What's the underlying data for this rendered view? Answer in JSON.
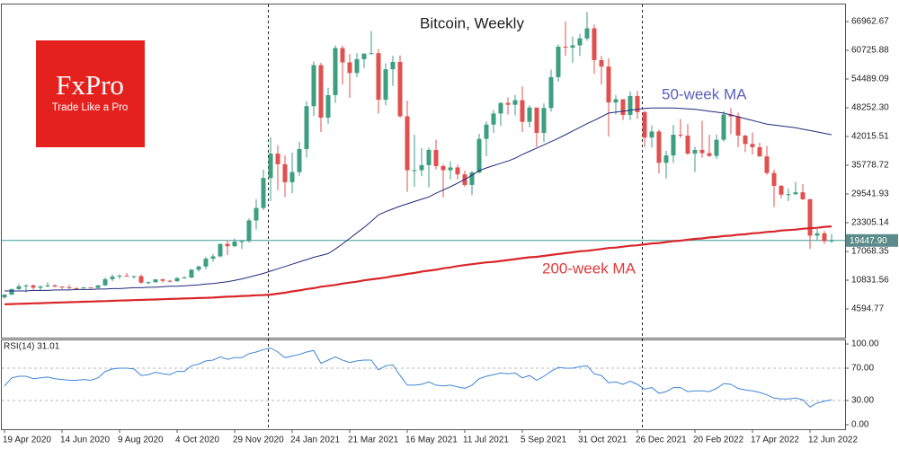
{
  "logo": {
    "name": "FxPro",
    "tagline": "Trade Like a Pro"
  },
  "chart_data": {
    "type": "candlestick",
    "title": "Bitcoin, Weekly",
    "categories": [
      "19 Apr 2020",
      null,
      null,
      null,
      null,
      null,
      null,
      null,
      "14 Jun 2020",
      null,
      null,
      null,
      null,
      null,
      null,
      null,
      "9 Aug 2020",
      null,
      null,
      null,
      null,
      null,
      null,
      null,
      "4 Oct 2020",
      null,
      null,
      null,
      null,
      null,
      null,
      null,
      "29 Nov 2020",
      null,
      null,
      null,
      null,
      null,
      null,
      null,
      "24 Jan 2021",
      null,
      null,
      null,
      null,
      null,
      null,
      null,
      "21 Mar 2021",
      null,
      null,
      null,
      null,
      null,
      null,
      null,
      "16 May 2021",
      null,
      null,
      null,
      null,
      null,
      null,
      null,
      "11 Jul 2021",
      null,
      null,
      null,
      null,
      null,
      null,
      null,
      "5 Sep 2021",
      null,
      null,
      null,
      null,
      null,
      null,
      null,
      "31 Oct 2021",
      null,
      null,
      null,
      null,
      null,
      null,
      null,
      "26 Dec 2021",
      null,
      null,
      null,
      null,
      null,
      null,
      null,
      "20 Feb 2022",
      null,
      null,
      null,
      null,
      null,
      null,
      null,
      "17 Apr 2022",
      null,
      null,
      null,
      null,
      null,
      null,
      null,
      "12 Jun 2022",
      null,
      null,
      null
    ],
    "open": [
      7100,
      7700,
      8900,
      9500,
      9700,
      9200,
      9500,
      9700,
      9450,
      9300,
      9100,
      9050,
      9250,
      9150,
      9700,
      11050,
      11600,
      11800,
      11700,
      11700,
      10300,
      10400,
      11000,
      10700,
      10600,
      11300,
      11400,
      13100,
      13800,
      15500,
      16000,
      18700,
      18200,
      19200,
      19300,
      23800,
      26500,
      33000,
      38300,
      36000,
      32100,
      34300,
      39300,
      48600,
      57500,
      46100,
      51000,
      61200,
      58100,
      55800,
      58800,
      60000,
      60100,
      50000,
      56600,
      58200,
      46400,
      34700,
      34700,
      35800,
      39100,
      35600,
      34700,
      35300,
      33800,
      31500,
      34200,
      41500,
      44600,
      47000,
      49300,
      48900,
      49900,
      45200,
      48300,
      42800,
      48200,
      54900,
      61500,
      61300,
      61800,
      63300,
      65500,
      58600,
      57200,
      49400,
      50100,
      46700,
      50800,
      47300,
      41800,
      43100,
      36300,
      37900,
      42400,
      42200,
      38300,
      39100,
      38400,
      37800,
      41300,
      46800,
      46400,
      42200,
      40400,
      39700,
      37700,
      34100,
      31300,
      29400,
      29500,
      29900,
      28400,
      20500,
      21000,
      19300
    ],
    "high": [
      7800,
      9000,
      10000,
      9900,
      9900,
      9600,
      10400,
      9900,
      9500,
      9800,
      9300,
      9400,
      9300,
      9800,
      11400,
      12100,
      12100,
      12400,
      11800,
      12100,
      10600,
      11100,
      11200,
      10900,
      11500,
      11700,
      13300,
      14000,
      15900,
      16500,
      18800,
      19500,
      19900,
      19400,
      24200,
      28400,
      34800,
      41900,
      40100,
      37900,
      38500,
      40900,
      49700,
      58300,
      58000,
      52600,
      61800,
      61700,
      59900,
      60100,
      60100,
      64900,
      61000,
      57900,
      59500,
      59600,
      49800,
      42400,
      39500,
      39600,
      41300,
      36000,
      36600,
      35900,
      34600,
      34500,
      42600,
      45300,
      47800,
      49500,
      50500,
      51000,
      52900,
      48800,
      48300,
      49200,
      56500,
      62000,
      67000,
      63700,
      64300,
      69000,
      66300,
      59500,
      59000,
      51000,
      50100,
      51800,
      51900,
      47600,
      44400,
      43500,
      38900,
      44500,
      45800,
      44700,
      39800,
      45400,
      42400,
      42400,
      47500,
      48200,
      47200,
      42400,
      42900,
      40700,
      40000,
      34800,
      31500,
      30700,
      32200,
      31700,
      28500,
      21900,
      21500,
      20900
    ],
    "low": [
      6800,
      7600,
      8700,
      8200,
      8800,
      8700,
      9300,
      9300,
      8900,
      8900,
      8900,
      9000,
      9100,
      9100,
      9600,
      10600,
      11100,
      11600,
      11200,
      10000,
      9900,
      10200,
      10300,
      10400,
      10500,
      11200,
      11300,
      12700,
      13200,
      14800,
      15800,
      16300,
      18000,
      17600,
      19000,
      21800,
      26000,
      28000,
      30400,
      28900,
      29700,
      33500,
      37400,
      46500,
      43000,
      44800,
      49300,
      53300,
      50400,
      54900,
      56800,
      59800,
      47000,
      48800,
      53000,
      46100,
      30000,
      31100,
      33400,
      31000,
      34900,
      28800,
      32700,
      32700,
      31100,
      29300,
      34000,
      37700,
      42800,
      44300,
      46800,
      46600,
      43000,
      44000,
      39800,
      40800,
      47400,
      53900,
      59500,
      58000,
      59500,
      62800,
      55600,
      53300,
      42000,
      46800,
      45600,
      45600,
      45900,
      39700,
      39600,
      34000,
      32900,
      36300,
      41700,
      38000,
      34300,
      37400,
      37600,
      37200,
      40900,
      42500,
      39700,
      38600,
      38100,
      37600,
      33700,
      26700,
      28600,
      28000,
      29300,
      28200,
      17600,
      19600,
      18700,
      18900
    ],
    "close": [
      7700,
      8900,
      9500,
      9700,
      9200,
      9500,
      9700,
      9450,
      9300,
      9100,
      9050,
      9250,
      9150,
      9700,
      11050,
      11600,
      11800,
      11700,
      11700,
      10300,
      10400,
      11000,
      10700,
      10600,
      11300,
      11400,
      13100,
      13800,
      15500,
      16000,
      18700,
      18200,
      19200,
      19300,
      23800,
      26500,
      33000,
      38300,
      36000,
      32100,
      34300,
      39300,
      48600,
      57500,
      46100,
      51000,
      61200,
      58100,
      55800,
      58800,
      60000,
      60100,
      50000,
      56600,
      58200,
      46400,
      34700,
      34700,
      35800,
      39100,
      35600,
      34700,
      35300,
      33800,
      31500,
      34200,
      41500,
      44600,
      47000,
      49300,
      48900,
      49900,
      45200,
      48300,
      42800,
      48200,
      54900,
      61500,
      61300,
      61800,
      63300,
      65500,
      58600,
      57200,
      49400,
      50100,
      46700,
      50800,
      47300,
      41800,
      43100,
      36300,
      37900,
      42400,
      42200,
      38300,
      39100,
      38400,
      37800,
      41300,
      46800,
      46400,
      42200,
      40400,
      39700,
      37700,
      34100,
      31300,
      29400,
      29500,
      29900,
      28400,
      20500,
      21000,
      19300,
      19447.9
    ],
    "up_color": "#3d9e80",
    "down_color": "#e0504f",
    "lines": [
      {
        "name": "50-week MA",
        "color": "#1f2a7a",
        "label_color": "#5a5fb8",
        "values": [
          8500,
          8500,
          8500,
          8500,
          8600,
          8600,
          8600,
          8700,
          8700,
          8700,
          8800,
          8800,
          8800,
          8900,
          8900,
          9000,
          9000,
          9100,
          9200,
          9200,
          9300,
          9300,
          9400,
          9500,
          9500,
          9600,
          9700,
          9800,
          10000,
          10100,
          10300,
          10500,
          10800,
          11100,
          11500,
          11900,
          12300,
          12800,
          13300,
          13800,
          14300,
          14800,
          15300,
          15800,
          16200,
          16600,
          17600,
          18700,
          19900,
          21100,
          22300,
          23600,
          25000,
          25700,
          26300,
          26900,
          27400,
          27900,
          28400,
          28900,
          29700,
          30400,
          31100,
          31900,
          32700,
          33600,
          34600,
          35200,
          35700,
          36200,
          36700,
          37300,
          38100,
          38800,
          39500,
          40200,
          40900,
          41600,
          42400,
          43200,
          44000,
          44800,
          45500,
          46300,
          47100,
          47300,
          47500,
          47700,
          47900,
          48100,
          48200,
          48200,
          48200,
          48200,
          48100,
          48000,
          47900,
          47700,
          47500,
          47300,
          47100,
          46700,
          46300,
          45900,
          45500,
          45100,
          44700,
          44500,
          44300,
          44100,
          43900,
          43600,
          43300,
          43000,
          42700,
          42400
        ]
      },
      {
        "name": "200-week MA",
        "color": "#d8262a",
        "label_color": "#e03a3a",
        "values": [
          5600,
          5650,
          5700,
          5750,
          5800,
          5850,
          5900,
          5950,
          6000,
          6050,
          6100,
          6150,
          6200,
          6250,
          6300,
          6350,
          6400,
          6450,
          6500,
          6550,
          6600,
          6650,
          6700,
          6750,
          6800,
          6850,
          6900,
          6950,
          7000,
          7050,
          7150,
          7250,
          7300,
          7400,
          7450,
          7550,
          7600,
          7700,
          7900,
          8100,
          8400,
          8600,
          8900,
          9100,
          9400,
          9600,
          9800,
          10100,
          10300,
          10500,
          10800,
          11000,
          11200,
          11400,
          11700,
          11900,
          12200,
          12400,
          12700,
          12900,
          13100,
          13400,
          13600,
          13900,
          14100,
          14300,
          14500,
          14700,
          14800,
          15000,
          15200,
          15400,
          15600,
          15800,
          15900,
          16100,
          16300,
          16500,
          16700,
          16900,
          17100,
          17200,
          17400,
          17600,
          17800,
          17900,
          18100,
          18300,
          18400,
          18600,
          18800,
          18900,
          19100,
          19300,
          19400,
          19600,
          19800,
          19900,
          20100,
          20200,
          20400,
          20500,
          20700,
          20800,
          21000,
          21100,
          21300,
          21400,
          21600,
          21700,
          21800,
          22000,
          22100,
          22200,
          22400,
          22500
        ]
      }
    ],
    "ylim": [
      -1642,
      70081
    ],
    "yticks": [
      66962.67,
      60725.88,
      54489.09,
      {
        "value": 48252.3,
        "label": "48252.30"
      },
      42015.51,
      35778.72,
      29541.93,
      23305.14,
      17068.35,
      10831.56,
      4594.77
    ],
    "current_price": {
      "value": 19447.9,
      "label": "19447.90",
      "color": "#3c9a9a"
    },
    "rsi": {
      "label": "RSI(14) 31.01",
      "color": "#3f86d6",
      "ylim": [
        -5.6,
        105.6
      ],
      "yticks": [
        {
          "value": 100,
          "label": "100.00"
        },
        {
          "value": 70,
          "label": "70.00"
        },
        {
          "value": 30,
          "label": "30.00"
        },
        {
          "value": 0,
          "label": "0.00"
        }
      ],
      "values": [
        48,
        58,
        60,
        60,
        57,
        58,
        59,
        57,
        56,
        55,
        55,
        56,
        55,
        58,
        66,
        69,
        70,
        70,
        69,
        61,
        62,
        65,
        63,
        62,
        66,
        66,
        73,
        75,
        79,
        80,
        84,
        81,
        83,
        83,
        88,
        90,
        93,
        95,
        90,
        83,
        85,
        87,
        90,
        92,
        76,
        80,
        84,
        80,
        77,
        79,
        80,
        80,
        68,
        73,
        74,
        61,
        49,
        49,
        50,
        53,
        49,
        48,
        49,
        47,
        45,
        49,
        57,
        60,
        62,
        64,
        63,
        64,
        58,
        61,
        55,
        60,
        66,
        71,
        70,
        70,
        72,
        73,
        63,
        61,
        52,
        53,
        50,
        54,
        50,
        44,
        46,
        39,
        41,
        46,
        46,
        41,
        42,
        42,
        41,
        45,
        51,
        50,
        45,
        43,
        42,
        40,
        37,
        33,
        32,
        32,
        33,
        31,
        22,
        27,
        29,
        31.01
      ]
    }
  }
}
